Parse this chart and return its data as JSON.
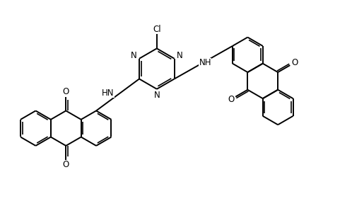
{
  "background_color": "#ffffff",
  "line_color": "#000000",
  "line_width": 1.4,
  "font_size": 8.5,
  "fig_width": 4.98,
  "fig_height": 2.98,
  "dpi": 100,
  "xlim": [
    0,
    10
  ],
  "ylim": [
    0,
    6
  ]
}
